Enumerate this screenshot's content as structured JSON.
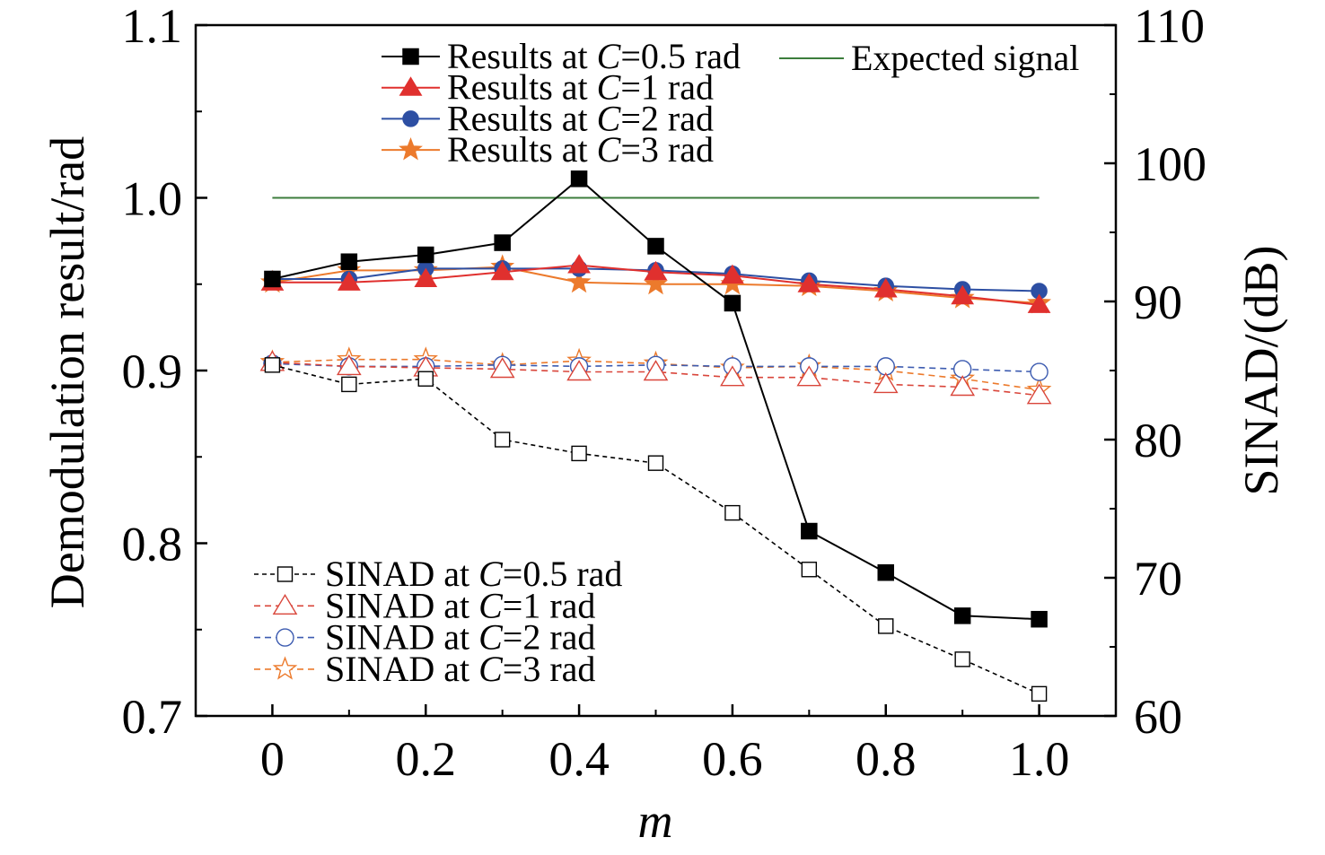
{
  "chart_data": {
    "type": "line",
    "title": "",
    "xlabel": "m",
    "ylabel": "Demodulation result/rad",
    "y2label": "SINAD/(dB)",
    "xlim": [
      -0.1,
      1.1
    ],
    "ylim": [
      0.7,
      1.1
    ],
    "y2lim": [
      60,
      110
    ],
    "grid": false,
    "x_ticks": [
      0,
      0.2,
      0.4,
      0.6,
      0.8,
      1.0
    ],
    "x_tick_labels": [
      "0",
      "0.2",
      "0.4",
      "0.6",
      "0.8",
      "1.0"
    ],
    "y_ticks": [
      0.7,
      0.8,
      0.9,
      1.0,
      1.1
    ],
    "y_tick_labels": [
      "0.7",
      "0.8",
      "0.9",
      "1.0",
      "1.1"
    ],
    "y2_ticks": [
      60,
      70,
      80,
      90,
      100,
      110
    ],
    "y2_tick_labels": [
      "60",
      "70",
      "80",
      "90",
      "100",
      "110"
    ],
    "x": [
      0,
      0.1,
      0.2,
      0.3,
      0.4,
      0.5,
      0.6,
      0.7,
      0.8,
      0.9,
      1.0
    ],
    "series": [
      {
        "name": "Results at C=0.5 rad",
        "y_axis": 1,
        "values": [
          0.953,
          0.963,
          0.967,
          0.974,
          1.011,
          0.972,
          0.939,
          0.807,
          0.783,
          0.758,
          0.756
        ],
        "color": "#000000",
        "marker": "square",
        "filled": true,
        "dashed": false,
        "legend_placement": "top"
      },
      {
        "name": "Results at C=1 rad",
        "y_axis": 1,
        "values": [
          0.951,
          0.951,
          0.953,
          0.957,
          0.961,
          0.957,
          0.955,
          0.95,
          0.947,
          0.943,
          0.938
        ],
        "color": "#e0302e",
        "marker": "triangle",
        "filled": true,
        "dashed": false,
        "legend_placement": "top"
      },
      {
        "name": "Results at C=2 rad",
        "y_axis": 1,
        "values": [
          0.953,
          0.953,
          0.959,
          0.959,
          0.959,
          0.958,
          0.956,
          0.952,
          0.949,
          0.947,
          0.946
        ],
        "color": "#2d4fa3",
        "marker": "circle",
        "filled": true,
        "dashed": false,
        "legend_placement": "top"
      },
      {
        "name": "Results at C=3 rad",
        "y_axis": 1,
        "values": [
          0.951,
          0.958,
          0.958,
          0.96,
          0.951,
          0.95,
          0.95,
          0.949,
          0.946,
          0.942,
          0.939
        ],
        "color": "#ec7a2c",
        "marker": "star",
        "filled": true,
        "dashed": false,
        "legend_placement": "top"
      },
      {
        "name": "Expected signal",
        "y_axis": 1,
        "x": [
          0,
          1.0
        ],
        "values": [
          1.0,
          1.0
        ],
        "color": "#3c7d3c",
        "marker": "none",
        "filled": false,
        "dashed": false,
        "legend_placement": "top"
      },
      {
        "name": "SINAD at C=0.5 rad",
        "y_axis": 2,
        "values": [
          85.4,
          84.0,
          84.4,
          80.0,
          79.0,
          78.3,
          74.7,
          70.6,
          66.5,
          64.1,
          61.6
        ],
        "color": "#000000",
        "marker": "square",
        "filled": false,
        "dashed": true,
        "legend_placement": "bottom-left"
      },
      {
        "name": "SINAD at C=1 rad",
        "y_axis": 2,
        "values": [
          85.6,
          85.3,
          85.2,
          85.1,
          84.9,
          84.9,
          84.5,
          84.5,
          84.0,
          83.8,
          83.2
        ],
        "color": "#d9453a",
        "marker": "triangle",
        "filled": false,
        "dashed": true,
        "legend_placement": "bottom-left"
      },
      {
        "name": "SINAD at C=2 rad",
        "y_axis": 2,
        "values": [
          85.5,
          85.3,
          85.3,
          85.4,
          85.3,
          85.4,
          85.3,
          85.3,
          85.3,
          85.1,
          84.9
        ],
        "color": "#3c5bb0",
        "marker": "circle",
        "filled": false,
        "dashed": true,
        "legend_placement": "bottom-left"
      },
      {
        "name": "SINAD at C=3 rad",
        "y_axis": 2,
        "values": [
          85.6,
          85.8,
          85.8,
          85.4,
          85.7,
          85.5,
          85.2,
          85.3,
          85.0,
          84.4,
          83.6
        ],
        "color": "#ec7a2c",
        "marker": "star",
        "filled": false,
        "dashed": true,
        "legend_placement": "bottom-left"
      }
    ]
  }
}
